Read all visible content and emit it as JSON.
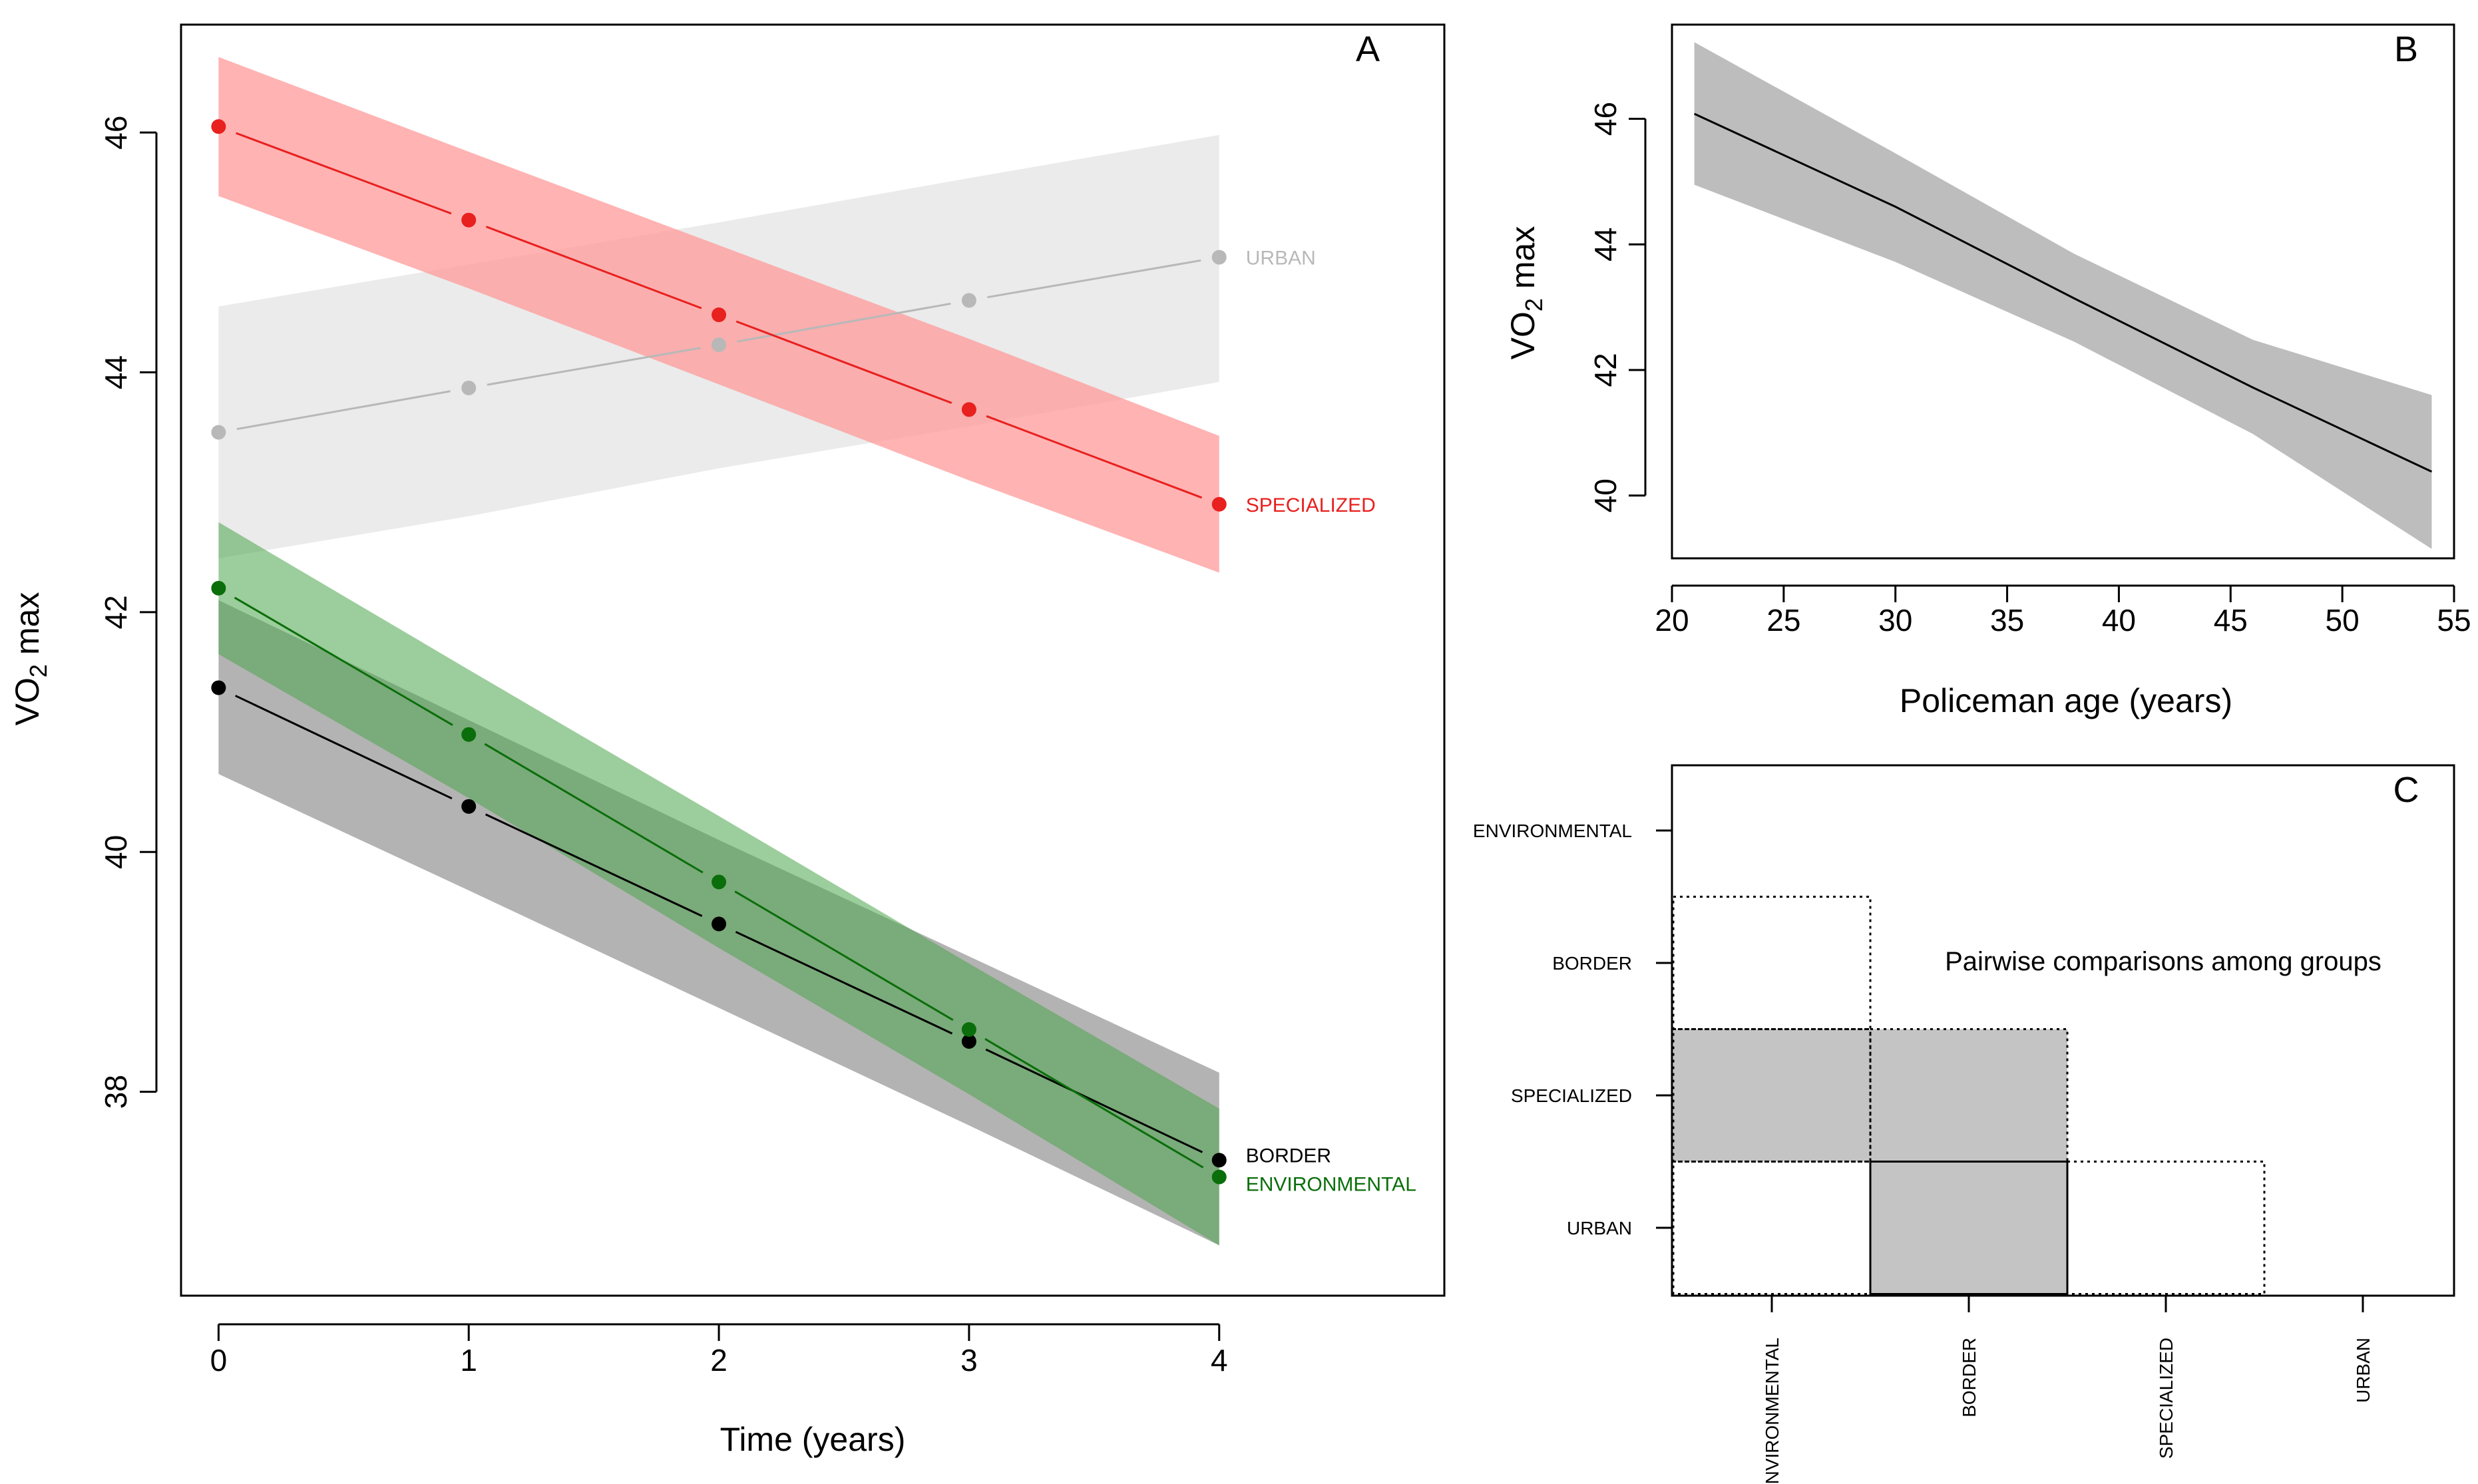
{
  "chart_data": [
    {
      "panel": "A",
      "type": "line",
      "xlabel": "Time (years)",
      "ylabel": "VO",
      "ylabel_sub": "2",
      "ylabel_suffix": " max",
      "xlim": [
        -0.15,
        4.9
      ],
      "ylim": [
        36.3,
        46.9
      ],
      "xticks": [
        0,
        1,
        2,
        3,
        4
      ],
      "yticks": [
        38,
        40,
        42,
        44,
        46
      ],
      "grid": false,
      "legend": "direct labels at right end of lines",
      "x": [
        0,
        1,
        2,
        3,
        4
      ],
      "series": [
        {
          "name": "URBAN",
          "color": "#b8b8b8",
          "band_color": "#e8e8e8",
          "band_opacity": 0.85,
          "values": [
            43.5,
            43.87,
            44.23,
            44.6,
            44.96
          ],
          "band_lower": [
            42.45,
            42.8,
            43.2,
            43.55,
            43.92
          ],
          "band_upper": [
            44.55,
            44.9,
            45.25,
            45.62,
            45.98
          ]
        },
        {
          "name": "SPECIALIZED",
          "color": "#e8201e",
          "band_color": "#ff9a9a",
          "band_opacity": 0.75,
          "values": [
            46.05,
            45.27,
            44.48,
            43.69,
            42.9
          ],
          "band_lower": [
            45.47,
            44.7,
            43.9,
            43.1,
            42.33
          ],
          "band_upper": [
            46.63,
            45.84,
            45.06,
            44.28,
            43.47
          ]
        },
        {
          "name": "BORDER",
          "color": "#000000",
          "band_color": "#a0a0a0",
          "band_opacity": 0.8,
          "values": [
            41.37,
            40.38,
            39.4,
            38.42,
            37.43
          ],
          "band_lower": [
            40.65,
            39.68,
            38.7,
            37.72,
            36.72
          ],
          "band_upper": [
            42.1,
            41.1,
            40.1,
            39.13,
            38.16
          ]
        },
        {
          "name": "ENVIRONMENTAL",
          "color": "#0a6e0a",
          "band_color": "#4aa44a",
          "band_opacity": 0.55,
          "values": [
            42.2,
            40.98,
            39.75,
            38.52,
            37.29
          ],
          "band_lower": [
            41.65,
            40.45,
            39.2,
            37.98,
            36.72
          ],
          "band_upper": [
            42.75,
            41.52,
            40.3,
            39.07,
            37.86
          ]
        }
      ]
    },
    {
      "panel": "B",
      "type": "line",
      "xlabel": "Policeman age (years)",
      "ylabel": "VO",
      "ylabel_sub": "2",
      "ylabel_suffix": " max",
      "xlim": [
        20,
        55
      ],
      "ylim": [
        39,
        47.5
      ],
      "xticks": [
        20,
        25,
        30,
        35,
        40,
        45,
        50,
        55
      ],
      "yticks": [
        40,
        42,
        44,
        46
      ],
      "grid": false,
      "x": [
        21,
        30,
        38,
        46,
        54
      ],
      "series": [
        {
          "color": "#000000",
          "band_color": "#bdbdbd",
          "values": [
            46.08,
            44.6,
            43.14,
            41.72,
            40.38
          ],
          "band_lower": [
            44.95,
            43.72,
            42.45,
            40.98,
            39.15
          ],
          "band_upper": [
            47.22,
            45.45,
            43.85,
            42.48,
            41.6
          ]
        }
      ]
    },
    {
      "panel": "C",
      "type": "heatmap",
      "title": "Pairwise comparisons among groups",
      "row_labels": [
        "ENVIRONMENTAL",
        "BORDER",
        "SPECIALIZED",
        "URBAN"
      ],
      "col_labels": [
        "ENVIRONMENTAL",
        "BORDER",
        "SPECIALIZED",
        "URBAN"
      ],
      "cells": [
        {
          "row": "BORDER",
          "col": "ENVIRONMENTAL",
          "style": "dotted",
          "fill": "#ffffff"
        },
        {
          "row": "SPECIALIZED",
          "col": "ENVIRONMENTAL",
          "style": "dotted",
          "fill": "#c4c4c4"
        },
        {
          "row": "SPECIALIZED",
          "col": "BORDER",
          "style": "dotted",
          "fill": "#c4c4c4"
        },
        {
          "row": "URBAN",
          "col": "ENVIRONMENTAL",
          "style": "dotted",
          "fill": "#ffffff"
        },
        {
          "row": "URBAN",
          "col": "BORDER",
          "style": "solid",
          "fill": "#c4c4c4"
        },
        {
          "row": "URBAN",
          "col": "SPECIALIZED",
          "style": "dotted",
          "fill": "#ffffff"
        }
      ]
    }
  ]
}
